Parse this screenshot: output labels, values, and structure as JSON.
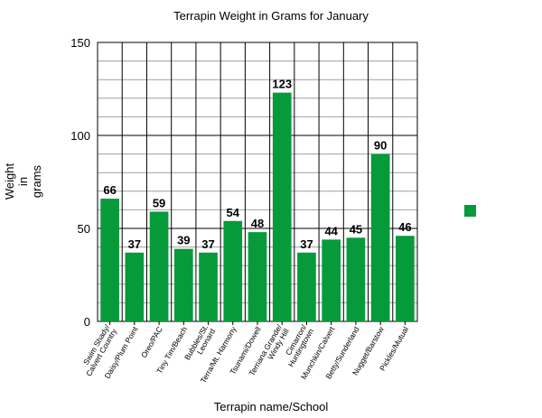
{
  "chart_data": {
    "type": "bar",
    "title": "Terrapin Weight in Grams for January",
    "x_label": "Terrapin name/School",
    "y_label": "Weight\nin\ngrams",
    "categories": [
      "Swim Shady/\nCalvert Country",
      "Daisy/Plum Point",
      "Oreo/PAC",
      "Tiny Tim/Beach",
      "Bubbles/St.\nLeonard",
      "Terra/Mt. Harmony",
      "Tsunami/Dowell",
      "Terriana Grande/\nWindy Hill",
      "Cimarron/\nHuntingtown",
      "Munchkin/Calvert",
      "Betty/Sunderland",
      "Nugget/Barstow",
      "Pickles/Mutual"
    ],
    "values": [
      66,
      37,
      59,
      39,
      37,
      54,
      48,
      123,
      37,
      44,
      45,
      90,
      46
    ],
    "color": "#079a3b",
    "ylim": [
      0,
      150
    ],
    "yticks": [
      0,
      50,
      100,
      150
    ],
    "minor_yticks": [
      10,
      20,
      30,
      40,
      60,
      70,
      80,
      90,
      110,
      120,
      130,
      140
    ],
    "grid": true
  }
}
